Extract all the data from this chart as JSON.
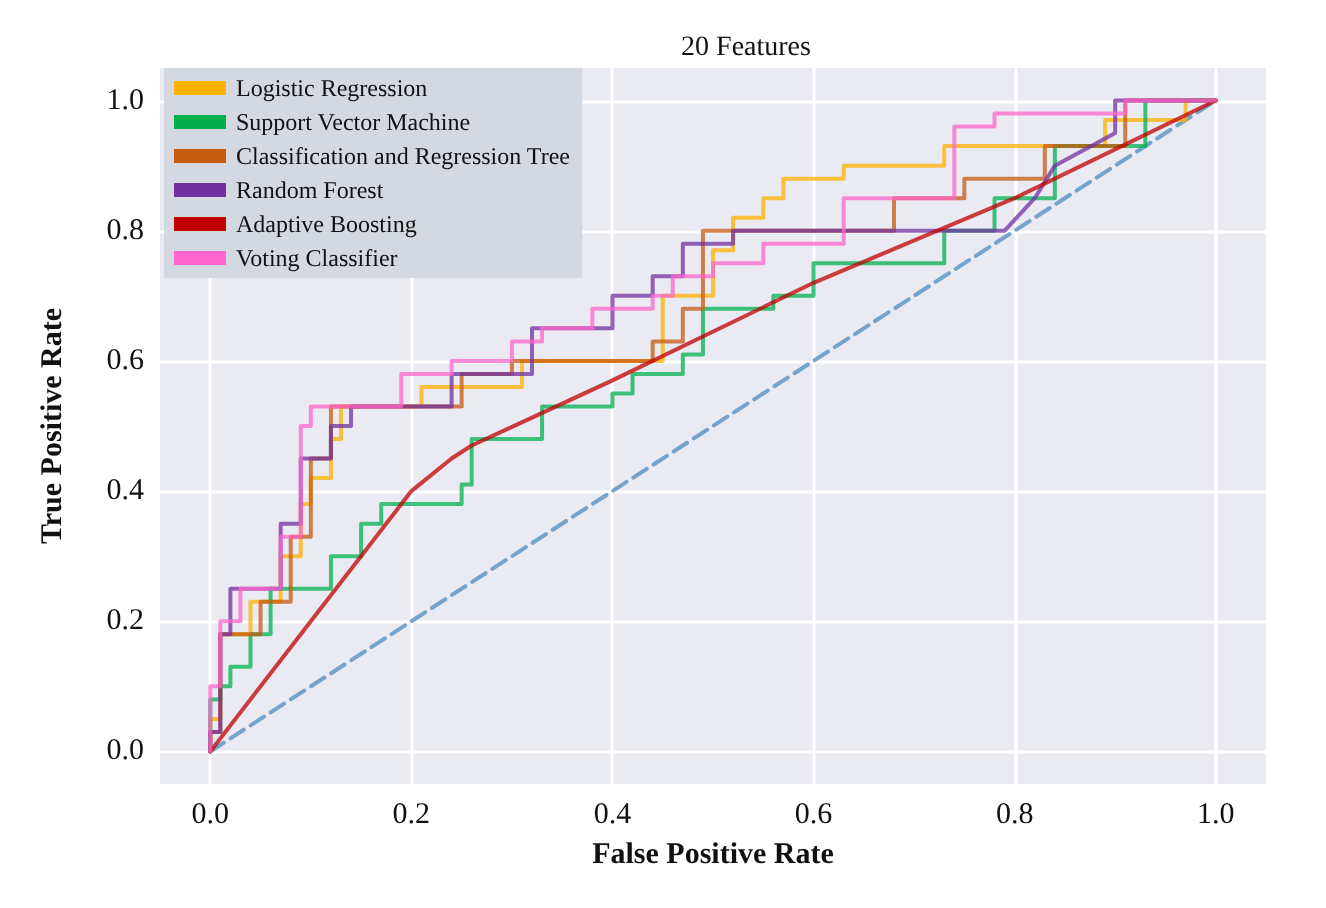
{
  "chart_data": {
    "type": "line",
    "title": "20 Features",
    "xlabel": "False Positive Rate",
    "ylabel": "True Positive Rate",
    "xlim": [
      -0.05,
      1.05
    ],
    "ylim": [
      -0.05,
      1.05
    ],
    "xticks": [
      {
        "value": 0,
        "label": "0.0"
      },
      0.2,
      0.4,
      0.6,
      0.8,
      {
        "value": 1,
        "label": "1.0"
      }
    ],
    "yticks": [
      {
        "value": 0,
        "label": "0.0"
      },
      0.2,
      0.4,
      0.6,
      0.8,
      {
        "value": 1,
        "label": "1.0"
      }
    ],
    "grid": true,
    "legend": "top left",
    "marker": "none",
    "series": [
      {
        "name": "Logistic Regression",
        "color": "#ffb000",
        "x": [
          0,
          0,
          0.01,
          0.01,
          0.04,
          0.04,
          0.07,
          0.07,
          0.09,
          0.09,
          0.1,
          0.1,
          0.12,
          0.12,
          0.13,
          0.13,
          0.21,
          0.21,
          0.31,
          0.31,
          0.45,
          0.45,
          0.5,
          0.5,
          0.52,
          0.52,
          0.55,
          0.55,
          0.57,
          0.57,
          0.63,
          0.63,
          0.73,
          0.73,
          0.89,
          0.89,
          0.97,
          0.97,
          1
        ],
        "values": [
          0,
          0.05,
          0.05,
          0.18,
          0.18,
          0.23,
          0.23,
          0.3,
          0.3,
          0.38,
          0.38,
          0.42,
          0.42,
          0.48,
          0.48,
          0.53,
          0.53,
          0.56,
          0.56,
          0.6,
          0.6,
          0.7,
          0.7,
          0.77,
          0.77,
          0.82,
          0.82,
          0.85,
          0.85,
          0.88,
          0.88,
          0.9,
          0.9,
          0.93,
          0.93,
          0.97,
          0.97,
          1,
          1
        ]
      },
      {
        "name": "Support Vector Machine",
        "color": "#00b050",
        "x": [
          0,
          0,
          0.01,
          0.01,
          0.02,
          0.02,
          0.04,
          0.04,
          0.06,
          0.06,
          0.12,
          0.12,
          0.15,
          0.15,
          0.17,
          0.17,
          0.25,
          0.25,
          0.26,
          0.26,
          0.33,
          0.33,
          0.4,
          0.4,
          0.42,
          0.42,
          0.47,
          0.47,
          0.49,
          0.49,
          0.56,
          0.56,
          0.6,
          0.6,
          0.73,
          0.73,
          0.78,
          0.78,
          0.84,
          0.84,
          0.93,
          0.93,
          1
        ],
        "values": [
          0,
          0.08,
          0.08,
          0.1,
          0.1,
          0.13,
          0.13,
          0.18,
          0.18,
          0.25,
          0.25,
          0.3,
          0.3,
          0.35,
          0.35,
          0.38,
          0.38,
          0.41,
          0.41,
          0.48,
          0.48,
          0.53,
          0.53,
          0.55,
          0.55,
          0.58,
          0.58,
          0.61,
          0.61,
          0.68,
          0.68,
          0.7,
          0.7,
          0.75,
          0.75,
          0.8,
          0.8,
          0.85,
          0.85,
          0.93,
          0.93,
          1,
          1
        ]
      },
      {
        "name": "Classification and Regression Tree",
        "color": "#c55a11",
        "x": [
          0,
          0,
          0.01,
          0.01,
          0.05,
          0.05,
          0.08,
          0.08,
          0.1,
          0.1,
          0.12,
          0.12,
          0.25,
          0.25,
          0.3,
          0.3,
          0.44,
          0.44,
          0.47,
          0.47,
          0.49,
          0.49,
          0.68,
          0.68,
          0.75,
          0.75,
          0.83,
          0.83,
          0.91,
          0.91,
          1
        ],
        "values": [
          0,
          0.03,
          0.03,
          0.18,
          0.18,
          0.23,
          0.23,
          0.33,
          0.33,
          0.45,
          0.45,
          0.53,
          0.53,
          0.58,
          0.58,
          0.6,
          0.6,
          0.63,
          0.63,
          0.68,
          0.68,
          0.8,
          0.8,
          0.85,
          0.85,
          0.88,
          0.88,
          0.93,
          0.93,
          1,
          1
        ]
      },
      {
        "name": "Random Forest",
        "color": "#7030a0",
        "x": [
          0,
          0,
          0.01,
          0.01,
          0.02,
          0.02,
          0.07,
          0.07,
          0.09,
          0.09,
          0.12,
          0.12,
          0.14,
          0.14,
          0.24,
          0.24,
          0.32,
          0.32,
          0.4,
          0.4,
          0.44,
          0.44,
          0.47,
          0.47,
          0.52,
          0.52,
          0.79,
          0.82,
          0.84,
          0.9,
          0.9,
          1
        ],
        "values": [
          0,
          0.03,
          0.03,
          0.18,
          0.18,
          0.25,
          0.25,
          0.35,
          0.35,
          0.45,
          0.45,
          0.5,
          0.5,
          0.53,
          0.53,
          0.58,
          0.58,
          0.65,
          0.65,
          0.7,
          0.7,
          0.73,
          0.73,
          0.78,
          0.78,
          0.8,
          0.8,
          0.85,
          0.9,
          0.95,
          1,
          1
        ]
      },
      {
        "name": "Adaptive Boosting",
        "color": "#c00000",
        "x": [
          0,
          0.1,
          0.2,
          0.24,
          0.26,
          0.4,
          0.6,
          0.8,
          1
        ],
        "values": [
          0,
          0.2,
          0.4,
          0.45,
          0.47,
          0.57,
          0.72,
          0.85,
          1
        ]
      },
      {
        "name": "Voting Classifier",
        "color": "#ff66cc",
        "x": [
          0,
          0,
          0.01,
          0.01,
          0.03,
          0.03,
          0.07,
          0.07,
          0.09,
          0.09,
          0.1,
          0.1,
          0.19,
          0.19,
          0.24,
          0.24,
          0.3,
          0.3,
          0.33,
          0.33,
          0.38,
          0.38,
          0.44,
          0.44,
          0.46,
          0.46,
          0.5,
          0.5,
          0.55,
          0.55,
          0.63,
          0.63,
          0.74,
          0.74,
          0.78,
          0.78,
          0.91,
          0.91,
          1
        ],
        "values": [
          0,
          0.1,
          0.1,
          0.2,
          0.2,
          0.25,
          0.25,
          0.33,
          0.33,
          0.5,
          0.5,
          0.53,
          0.53,
          0.58,
          0.58,
          0.6,
          0.6,
          0.63,
          0.63,
          0.65,
          0.65,
          0.68,
          0.68,
          0.7,
          0.7,
          0.73,
          0.73,
          0.75,
          0.75,
          0.78,
          0.78,
          0.85,
          0.85,
          0.96,
          0.96,
          0.98,
          0.98,
          1,
          1
        ]
      },
      {
        "color": "#4c8bbf",
        "line_style": "dashed",
        "x": [
          0,
          1
        ],
        "values": [
          0,
          1
        ]
      }
    ]
  }
}
